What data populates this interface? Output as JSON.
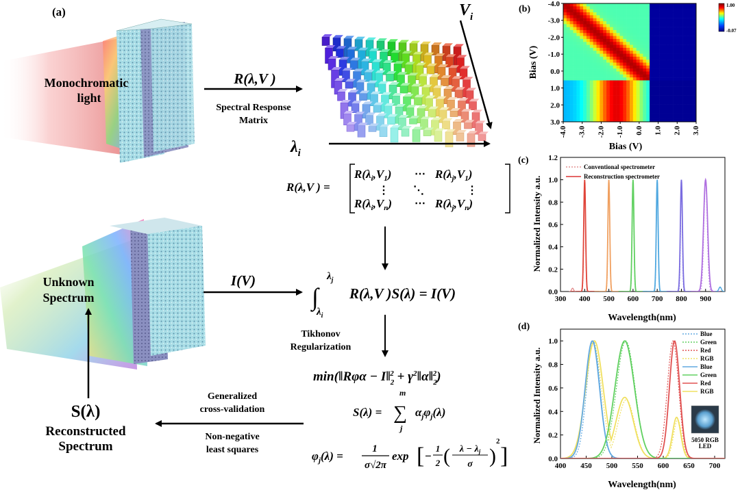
{
  "panel_labels": {
    "a": "(a)",
    "b": "(b)",
    "c": "(c)",
    "d": "(d)"
  },
  "schematic": {
    "mono_light": [
      "Monochromatic",
      "light"
    ],
    "unknown_spectrum": [
      "Unknown",
      "Spectrum"
    ],
    "r_lambda_v": "R(λ,V )",
    "srm_label": [
      "Spectral Response",
      "Matrix"
    ],
    "v_i": "V",
    "v_i_sub": "i",
    "lambda_i": "λ",
    "lambda_i_sub": "i",
    "matrix_lhs": "R(λ,V ) =",
    "matrix_cells": [
      [
        "R(λ",
        "i",
        ",V",
        "1",
        ")"
      ],
      [
        "R(λ",
        "j",
        ",V",
        "1",
        ")"
      ],
      [
        "R(λ",
        "i",
        ",V",
        "n",
        ")"
      ],
      [
        "R(λ",
        "j",
        ",V",
        "n",
        ")"
      ]
    ],
    "dots": {
      "h": "⋯",
      "v": "⋮",
      "d": "⋱"
    },
    "i_v": "I(V)",
    "integral_body": "R(λ,V )S(λ) = I(V)",
    "integral_upper": "λ",
    "integral_upper_sub": "j",
    "integral_lower": "λ",
    "integral_lower_sub": "i",
    "tikhonov": [
      "Tikhonov",
      "Regularization"
    ],
    "min_expr": "min(‖Rφα − I‖",
    "min_expr_2": " + γ",
    "min_expr_3": "‖α‖",
    "min_expr_4": ")",
    "s_sum_lhs": "S(λ) =",
    "s_sum_body": "α",
    "s_sum_body_sub": "j",
    "s_sum_body2": "φ",
    "s_sum_body2_sub": "j",
    "s_sum_body3": "(λ)",
    "s_sum_top": "m",
    "s_sum_bottom": "j",
    "phi_lhs": "φ",
    "phi_lhs_sub": "j",
    "phi_lhs_2": "(λ) =",
    "phi_num": "1",
    "phi_den": "σ√2π",
    "phi_exp": "exp",
    "phi_half_num": "1",
    "phi_half_den": "2",
    "phi_inner_num": "λ − λ",
    "phi_inner_num_sub": "j",
    "phi_inner_den": "σ",
    "gcv": [
      "Generalized",
      "cross-validation"
    ],
    "nnls": [
      "Non-negative",
      "least squares"
    ],
    "s_lambda": "S(λ)",
    "reconstructed": [
      "Reconstructed",
      "Spectrum"
    ]
  },
  "chart_data": [
    {
      "panel": "(b)",
      "type": "heatmap",
      "xlabel": "Bias (V)",
      "ylabel": "Bias (V)",
      "xlim": [
        -4.0,
        3.0
      ],
      "ylim": [
        -4.0,
        3.0
      ],
      "y_inverted": true,
      "xticks": [
        "-4.0",
        "-3.0",
        "-2.0",
        "-1.0",
        "0.0",
        "1.0",
        "2.0",
        "3.0"
      ],
      "yticks": [
        "-4.0",
        "-3.0",
        "-2.0",
        "-1.0",
        "0.0",
        "1.0",
        "2.0",
        "3.0"
      ],
      "colorbar": {
        "max": "1.00",
        "min": "-0.07"
      },
      "colormap": "jet"
    },
    {
      "panel": "(c)",
      "type": "line",
      "xlabel": "Wavelength(nm)",
      "ylabel": "Normalized Intensity a.u.",
      "xlim": [
        300,
        980
      ],
      "ylim": [
        0.0,
        1.2
      ],
      "xticks": [
        300,
        400,
        500,
        600,
        700,
        800,
        900
      ],
      "yticks": [
        "0.0",
        "0.2",
        "0.4",
        "0.6",
        "0.8",
        "1.0",
        "1.2"
      ],
      "legend": [
        {
          "label": "Conventional spectrometer",
          "style": "dotted",
          "color": "#e8a0a0"
        },
        {
          "label": "Reconstruction spectrometer",
          "style": "solid",
          "color": "#e05050"
        }
      ],
      "series": [
        {
          "center": 400,
          "fwhm_conventional": 8,
          "fwhm_reconstruction": 9,
          "color": "#e0453a"
        },
        {
          "center": 500,
          "fwhm_conventional": 8,
          "fwhm_reconstruction": 9,
          "color": "#f0a060"
        },
        {
          "center": 600,
          "fwhm_conventional": 8,
          "fwhm_reconstruction": 9,
          "color": "#60d060"
        },
        {
          "center": 700,
          "fwhm_conventional": 8,
          "fwhm_reconstruction": 9,
          "color": "#50a8e0"
        },
        {
          "center": 800,
          "fwhm_conventional": 8,
          "fwhm_reconstruction": 10,
          "color": "#7a6ce0"
        },
        {
          "center": 900,
          "fwhm_conventional": 16,
          "fwhm_reconstruction": 20,
          "color": "#b070e0"
        }
      ]
    },
    {
      "panel": "(d)",
      "type": "line",
      "xlabel": "Wavelength(nm)",
      "ylabel": "Normalized Intensity a.u.",
      "xlim": [
        400,
        720
      ],
      "ylim": [
        0.0,
        1.1
      ],
      "xticks": [
        400,
        450,
        500,
        550,
        600,
        650,
        700
      ],
      "yticks": [
        "0.0",
        "0.2",
        "0.4",
        "0.6",
        "0.8",
        "1.0"
      ],
      "legend": [
        {
          "label": "Blue",
          "style": "dotted",
          "color": "#60a8e0"
        },
        {
          "label": "Green",
          "style": "dotted",
          "color": "#60d060"
        },
        {
          "label": "Red",
          "style": "dotted",
          "color": "#e05050"
        },
        {
          "label": "RGB",
          "style": "dotted",
          "color": "#f0e060"
        },
        {
          "label": "Blue",
          "style": "solid",
          "color": "#60a8e0"
        },
        {
          "label": "Green",
          "style": "solid",
          "color": "#60d060"
        },
        {
          "label": "Red",
          "style": "solid",
          "color": "#e05050"
        },
        {
          "label": "RGB",
          "style": "solid",
          "color": "#f0e060"
        }
      ],
      "inset_label": [
        "5050 RGB",
        "LED"
      ],
      "peaks": {
        "blue": 462,
        "green": 525,
        "red": 622
      }
    }
  ]
}
